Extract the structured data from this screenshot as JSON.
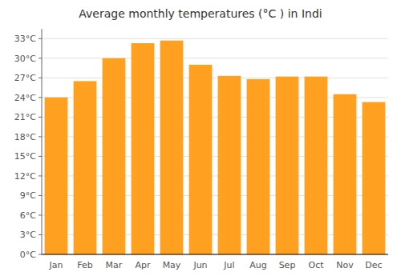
{
  "chart_data": {
    "type": "bar",
    "title": "Average monthly temperatures (°C ) in Indi",
    "categories": [
      "Jan",
      "Feb",
      "Mar",
      "Apr",
      "May",
      "Jun",
      "Jul",
      "Aug",
      "Sep",
      "Oct",
      "Nov",
      "Dec"
    ],
    "values": [
      24.0,
      26.5,
      30.0,
      32.3,
      32.7,
      29.0,
      27.3,
      26.8,
      27.2,
      27.2,
      24.5,
      23.3
    ],
    "color": "#FFA020",
    "ylim": [
      0,
      34.5
    ],
    "yticks": [
      {
        "value": 0,
        "label": "0°C"
      },
      {
        "value": 3,
        "label": "3°C"
      },
      {
        "value": 6,
        "label": "6°C"
      },
      {
        "value": 9,
        "label": "9°C"
      },
      {
        "value": 12,
        "label": "12°C"
      },
      {
        "value": 15,
        "label": "15°C"
      },
      {
        "value": 18,
        "label": "18°C"
      },
      {
        "value": 21,
        "label": "21°C"
      },
      {
        "value": 24,
        "label": "24°C"
      },
      {
        "value": 27,
        "label": "27°C"
      },
      {
        "value": 30,
        "label": "30°C"
      },
      {
        "value": 33,
        "label": "33°C"
      }
    ],
    "grid": true
  }
}
